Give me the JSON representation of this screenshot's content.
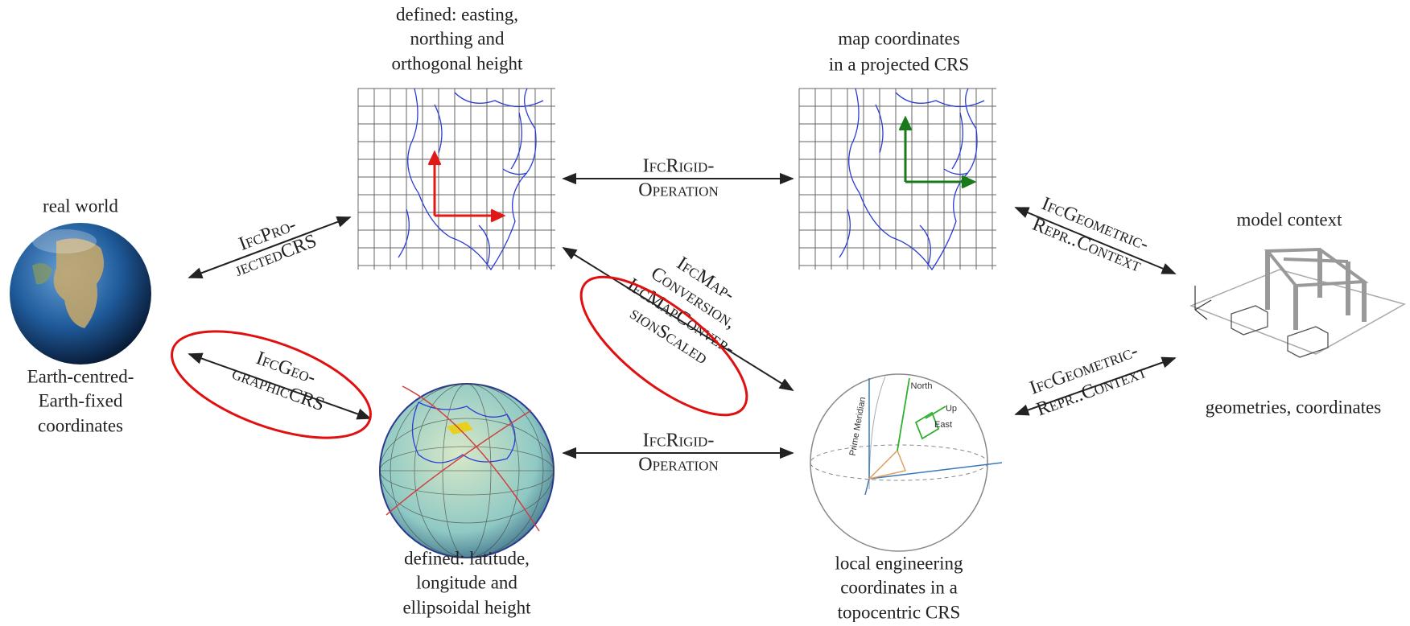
{
  "nodes": {
    "earth": {
      "title": "real world",
      "caption": [
        "Earth-centred-",
        "Earth-fixed",
        "coordinates"
      ]
    },
    "projected_definition": {
      "title": [
        "defined: easting,",
        "northing and",
        "orthogonal height"
      ]
    },
    "projected": {
      "title": [
        "map coordinates",
        "in a projected CRS"
      ]
    },
    "model": {
      "title": "model context",
      "caption": "geometries, coordinates"
    },
    "geographic": {
      "caption": [
        "defined: latitude,",
        "longitude and",
        "ellipsoidal height"
      ]
    },
    "engineering": {
      "caption": [
        "local engineering",
        "coordinates in a",
        "topocentric CRS"
      ],
      "labels": [
        "North",
        "Up",
        "East",
        "Prime Meridian"
      ]
    }
  },
  "edges": [
    {
      "label": [
        "IfcPro-",
        "jectedCRS"
      ]
    },
    {
      "label": [
        "IfcGeo-",
        "graphicCRS"
      ]
    },
    {
      "label": [
        "IfcRigid-",
        "Operation"
      ]
    },
    {
      "label": [
        "IfcRigid-",
        "Operation"
      ]
    },
    {
      "label": [
        "IfcMap-",
        "Conversion,",
        "IfcMapConver-",
        "sionScaled"
      ]
    },
    {
      "label": [
        "IfcGeometric-",
        "Repr..Context"
      ]
    },
    {
      "label": [
        "IfcGeometric-",
        "Repr..Context"
      ]
    }
  ]
}
